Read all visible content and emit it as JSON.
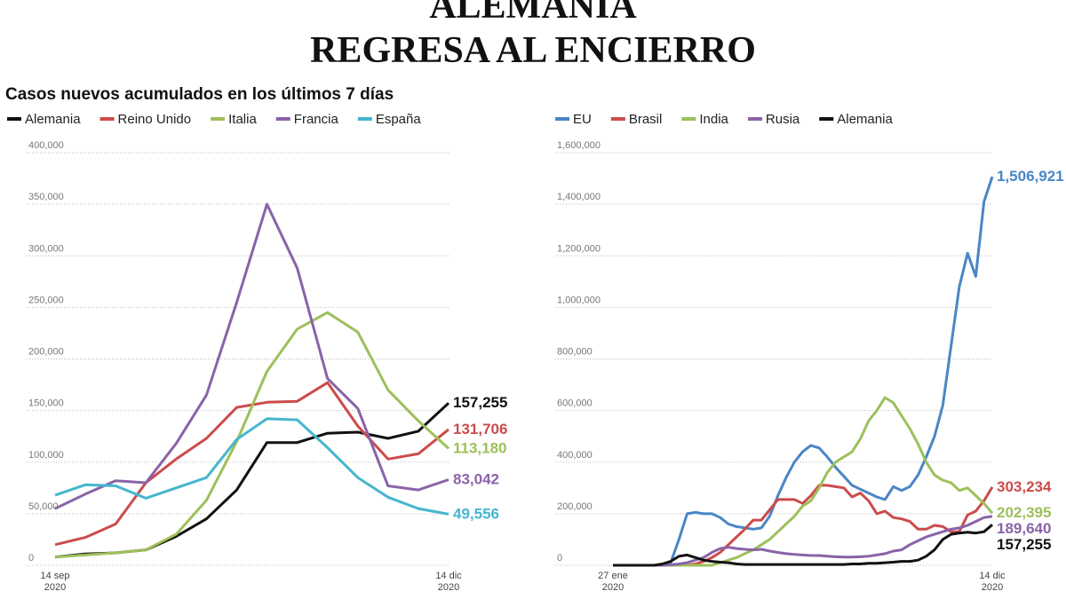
{
  "title_lines": [
    "ALEMANIA",
    "REGRESA AL ENCIERRO"
  ],
  "subtitle": "Casos  nuevos acumulados en los últimos 7 días",
  "chart_data": [
    {
      "type": "line",
      "categories": [
        "14 sep\n2020",
        null,
        null,
        null,
        null,
        null,
        null,
        null,
        null,
        null,
        null,
        null,
        null,
        "14 dic\n2020"
      ],
      "ylim": [
        0,
        400000
      ],
      "yticks": [
        0,
        {
          "value": 50000,
          "label": "50,000"
        },
        {
          "value": 100000,
          "label": "100,000"
        },
        {
          "value": 150000,
          "label": "150,000"
        },
        {
          "value": 200000,
          "label": "200,000"
        },
        {
          "value": 250000,
          "label": "250,000"
        },
        {
          "value": 300000,
          "label": "300,000"
        },
        {
          "value": 350000,
          "label": "350,000"
        },
        {
          "value": 400000,
          "label": "400,000"
        }
      ],
      "grid": true,
      "series": [
        {
          "name": "Alemania",
          "color": "#111111",
          "values": [
            8000,
            11000,
            12000,
            15000,
            28000,
            45000,
            73000,
            119000,
            119000,
            128000,
            129000,
            123000,
            130000,
            157255
          ],
          "value_labels": [
            null,
            null,
            null,
            null,
            null,
            null,
            null,
            null,
            null,
            null,
            null,
            null,
            null,
            "157,255"
          ]
        },
        {
          "name": "Reino Unido",
          "color": "#cc4b4b",
          "values": [
            20000,
            27000,
            40000,
            80000,
            103000,
            123000,
            153000,
            158000,
            159000,
            177000,
            135000,
            103000,
            108000,
            131706
          ],
          "value_labels": [
            null,
            null,
            null,
            null,
            null,
            null,
            null,
            null,
            null,
            null,
            null,
            null,
            null,
            "131,706"
          ]
        },
        {
          "name": "Italia",
          "color": "#9dc05a",
          "values": [
            8000,
            10000,
            12000,
            15000,
            30000,
            63000,
            120000,
            188000,
            229000,
            245000,
            226000,
            170000,
            140000,
            113180
          ],
          "value_labels": [
            null,
            null,
            null,
            null,
            null,
            null,
            null,
            null,
            null,
            null,
            null,
            null,
            null,
            "113,180"
          ]
        },
        {
          "name": "Francia",
          "color": "#8a63a8",
          "values": [
            55000,
            69000,
            82000,
            80000,
            118000,
            165000,
            255000,
            350000,
            288000,
            181000,
            152000,
            77000,
            73000,
            83042
          ],
          "value_labels": [
            null,
            null,
            null,
            null,
            null,
            null,
            null,
            null,
            null,
            null,
            null,
            null,
            null,
            "83,042"
          ]
        },
        {
          "name": "España",
          "color": "#45b6cf",
          "values": [
            68000,
            78000,
            77000,
            65000,
            75000,
            85000,
            122000,
            142000,
            141000,
            114000,
            85000,
            66000,
            55000,
            49556
          ],
          "value_labels": [
            null,
            null,
            null,
            null,
            null,
            null,
            null,
            null,
            null,
            null,
            null,
            null,
            null,
            "49,556"
          ]
        }
      ]
    },
    {
      "type": "line",
      "categories": [
        "27 ene\n2020",
        null,
        null,
        null,
        null,
        null,
        null,
        null,
        null,
        null,
        null,
        null,
        null,
        null,
        null,
        null,
        null,
        null,
        null,
        null,
        null,
        null,
        null,
        null,
        null,
        null,
        null,
        null,
        null,
        null,
        null,
        null,
        null,
        null,
        null,
        null,
        null,
        null,
        null,
        null,
        null,
        null,
        null,
        null,
        null,
        null,
        "14 dic\n2020"
      ],
      "ylim": [
        0,
        1600000
      ],
      "yticks": [
        0,
        {
          "value": 200000,
          "label": "200,000"
        },
        {
          "value": 400000,
          "label": "400,000"
        },
        {
          "value": 600000,
          "label": "600,000"
        },
        {
          "value": 800000,
          "label": "800,000"
        },
        {
          "value": 1000000,
          "label": "1,000,000"
        },
        {
          "value": 1200000,
          "label": "1,200,000"
        },
        {
          "value": 1400000,
          "label": "1,400,000"
        },
        {
          "value": 1600000,
          "label": "1,600,000"
        }
      ],
      "grid": true,
      "series": [
        {
          "name": "EU",
          "color": "#4a86c5",
          "values": [
            0,
            0,
            0,
            0,
            0,
            0,
            2000,
            10000,
            100000,
            200000,
            205000,
            200000,
            200000,
            185000,
            160000,
            150000,
            145000,
            140000,
            145000,
            190000,
            270000,
            340000,
            400000,
            440000,
            465000,
            455000,
            420000,
            380000,
            345000,
            310000,
            295000,
            280000,
            265000,
            255000,
            305000,
            290000,
            305000,
            350000,
            420000,
            500000,
            620000,
            850000,
            1080000,
            1210000,
            1120000,
            1410000,
            1506921
          ],
          "value_labels": [
            null,
            null,
            null,
            null,
            null,
            null,
            null,
            null,
            null,
            null,
            null,
            null,
            null,
            null,
            null,
            null,
            null,
            null,
            null,
            null,
            null,
            null,
            null,
            null,
            null,
            null,
            null,
            null,
            null,
            null,
            null,
            null,
            null,
            null,
            null,
            null,
            null,
            null,
            null,
            null,
            null,
            null,
            null,
            null,
            null,
            null,
            "1,506,921"
          ]
        },
        {
          "name": "Brasil",
          "color": "#cc4b4b",
          "values": [
            0,
            0,
            0,
            0,
            0,
            0,
            0,
            0,
            0,
            0,
            5000,
            15000,
            30000,
            50000,
            80000,
            110000,
            140000,
            175000,
            175000,
            215000,
            255000,
            255000,
            255000,
            240000,
            270000,
            310000,
            310000,
            305000,
            300000,
            265000,
            280000,
            250000,
            200000,
            210000,
            185000,
            180000,
            170000,
            140000,
            140000,
            155000,
            150000,
            130000,
            130000,
            195000,
            210000,
            250000,
            303234
          ],
          "value_labels": [
            null,
            null,
            null,
            null,
            null,
            null,
            null,
            null,
            null,
            null,
            null,
            null,
            null,
            null,
            null,
            null,
            null,
            null,
            null,
            null,
            null,
            null,
            null,
            null,
            null,
            null,
            null,
            null,
            null,
            null,
            null,
            null,
            null,
            null,
            null,
            null,
            null,
            null,
            null,
            null,
            null,
            null,
            null,
            null,
            null,
            null,
            "303,234"
          ]
        },
        {
          "name": "India",
          "color": "#9dc05a",
          "values": [
            0,
            0,
            0,
            0,
            0,
            0,
            0,
            0,
            0,
            0,
            0,
            0,
            0,
            10000,
            20000,
            30000,
            45000,
            60000,
            80000,
            100000,
            130000,
            160000,
            190000,
            230000,
            250000,
            300000,
            360000,
            400000,
            420000,
            440000,
            490000,
            560000,
            600000,
            650000,
            630000,
            580000,
            530000,
            470000,
            400000,
            350000,
            330000,
            320000,
            290000,
            300000,
            270000,
            240000,
            202395
          ],
          "value_labels": [
            null,
            null,
            null,
            null,
            null,
            null,
            null,
            null,
            null,
            null,
            null,
            null,
            null,
            null,
            null,
            null,
            null,
            null,
            null,
            null,
            null,
            null,
            null,
            null,
            null,
            null,
            null,
            null,
            null,
            null,
            null,
            null,
            null,
            null,
            null,
            null,
            null,
            null,
            null,
            null,
            null,
            null,
            null,
            null,
            null,
            null,
            "202,395"
          ]
        },
        {
          "name": "Rusia",
          "color": "#8a63a8",
          "values": [
            0,
            0,
            0,
            0,
            0,
            0,
            0,
            2000,
            5000,
            10000,
            20000,
            30000,
            50000,
            65000,
            70000,
            65000,
            62000,
            60000,
            62000,
            55000,
            50000,
            45000,
            42000,
            40000,
            38000,
            38000,
            35000,
            33000,
            32000,
            32000,
            33000,
            35000,
            40000,
            45000,
            55000,
            60000,
            80000,
            95000,
            110000,
            120000,
            130000,
            140000,
            145000,
            155000,
            170000,
            185000,
            189640
          ],
          "value_labels": [
            null,
            null,
            null,
            null,
            null,
            null,
            null,
            null,
            null,
            null,
            null,
            null,
            null,
            null,
            null,
            null,
            null,
            null,
            null,
            null,
            null,
            null,
            null,
            null,
            null,
            null,
            null,
            null,
            null,
            null,
            null,
            null,
            null,
            null,
            null,
            null,
            null,
            null,
            null,
            null,
            null,
            null,
            null,
            null,
            null,
            null,
            "189,640"
          ]
        },
        {
          "name": "Alemania",
          "color": "#111111",
          "values": [
            0,
            0,
            0,
            0,
            0,
            0,
            5000,
            15000,
            35000,
            40000,
            30000,
            20000,
            15000,
            12000,
            10000,
            5000,
            3000,
            3000,
            3000,
            3000,
            3000,
            3000,
            3000,
            3000,
            3000,
            3000,
            3000,
            3000,
            3000,
            5000,
            5000,
            8000,
            8000,
            10000,
            12000,
            15000,
            15000,
            20000,
            35000,
            60000,
            100000,
            120000,
            125000,
            128000,
            125000,
            130000,
            157255
          ],
          "value_labels": [
            null,
            null,
            null,
            null,
            null,
            null,
            null,
            null,
            null,
            null,
            null,
            null,
            null,
            null,
            null,
            null,
            null,
            null,
            null,
            null,
            null,
            null,
            null,
            null,
            null,
            null,
            null,
            null,
            null,
            null,
            null,
            null,
            null,
            null,
            null,
            null,
            null,
            null,
            null,
            null,
            null,
            null,
            null,
            null,
            null,
            null,
            "157,255"
          ]
        }
      ]
    }
  ]
}
